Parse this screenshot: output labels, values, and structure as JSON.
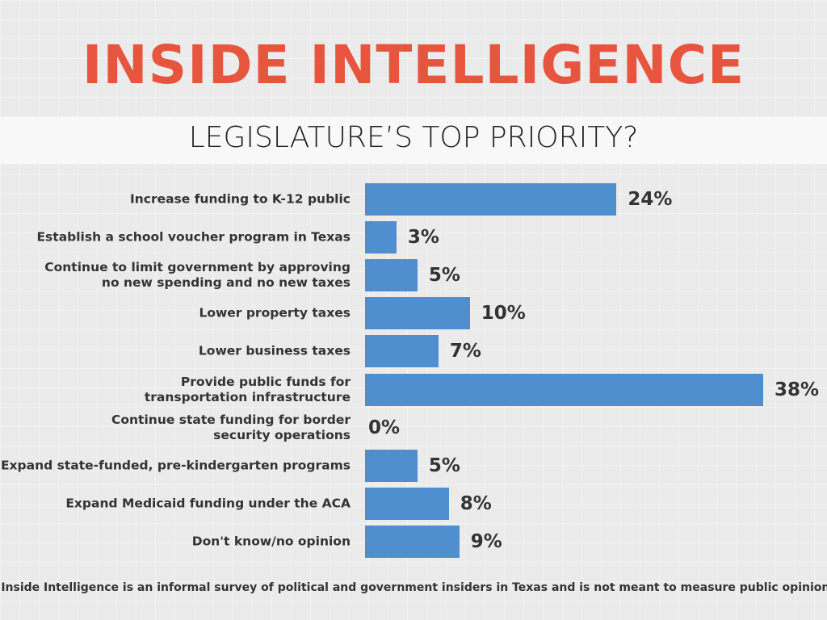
{
  "chart_data": {
    "type": "bar",
    "orientation": "horizontal",
    "title": "INSIDE INTELLIGENCE",
    "subtitle": "LEGISLATURE’S TOP PRIORITY?",
    "categories": [
      "Increase funding to K-12 public",
      "Establish a school voucher program in Texas",
      "Continue to limit government by approving\nno new spending and no new taxes",
      "Lower property taxes",
      "Lower business taxes",
      "Provide public funds for\ntransportation infrastructure",
      "Continue state funding for border\nsecurity operations",
      "Expand state-funded, pre-kindergarten programs",
      "Expand Medicaid funding under the ACA",
      "Don't know/no opinion"
    ],
    "values": [
      24,
      3,
      5,
      10,
      7,
      38,
      0,
      5,
      8,
      9
    ],
    "value_labels": [
      "24%",
      "3%",
      "5%",
      "10%",
      "7%",
      "38%",
      "0%",
      "5%",
      "8%",
      "9%"
    ],
    "color": "#4f8fcf",
    "footnote": "Inside Intelligence is an informal survey of political and government insiders in Texas and is not meant to measure public opinion."
  }
}
